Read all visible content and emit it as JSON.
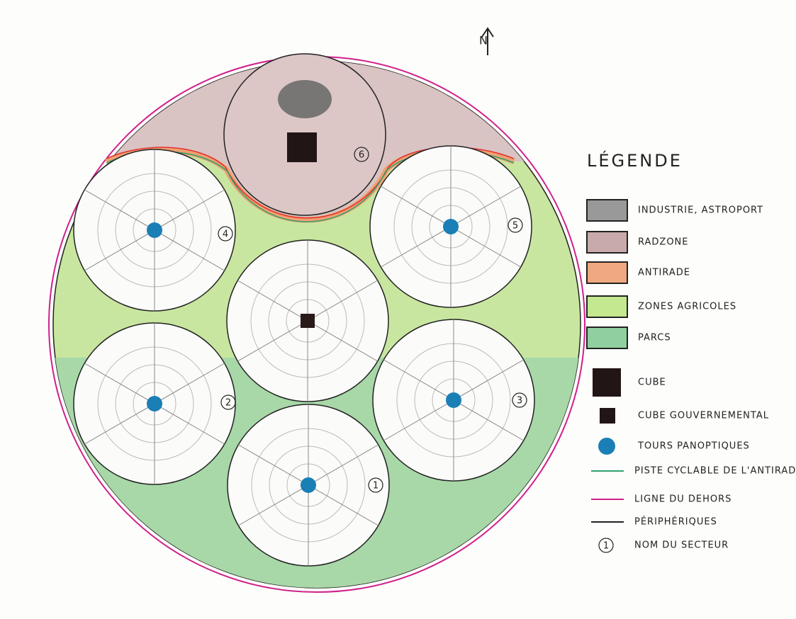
{
  "north": "N",
  "legend": {
    "title": "LÉGENDE",
    "items": [
      {
        "label": "INDUSTRIE, ASTROPORT"
      },
      {
        "label": "RADZONE"
      },
      {
        "label": "ANTIRADE"
      },
      {
        "label": "ZONES AGRICOLES"
      },
      {
        "label": "PARCS"
      },
      {
        "label": "CUBE"
      },
      {
        "label": "CUBE GOUVERNEMENTAL"
      },
      {
        "label": "TOURS PANOPTIQUES"
      },
      {
        "label": "PISTE CYCLABLE DE L'ANTIRADE"
      },
      {
        "label": "LIGNE DU DEHORS"
      },
      {
        "label": "PÉRIPHÉRIQUES"
      },
      {
        "label": "NOM DU SECTEUR",
        "symbol": "1"
      }
    ]
  },
  "sectors": [
    {
      "label": "1"
    },
    {
      "label": "2"
    },
    {
      "label": "3"
    },
    {
      "label": "4"
    },
    {
      "label": "5"
    },
    {
      "label": "6"
    }
  ]
}
